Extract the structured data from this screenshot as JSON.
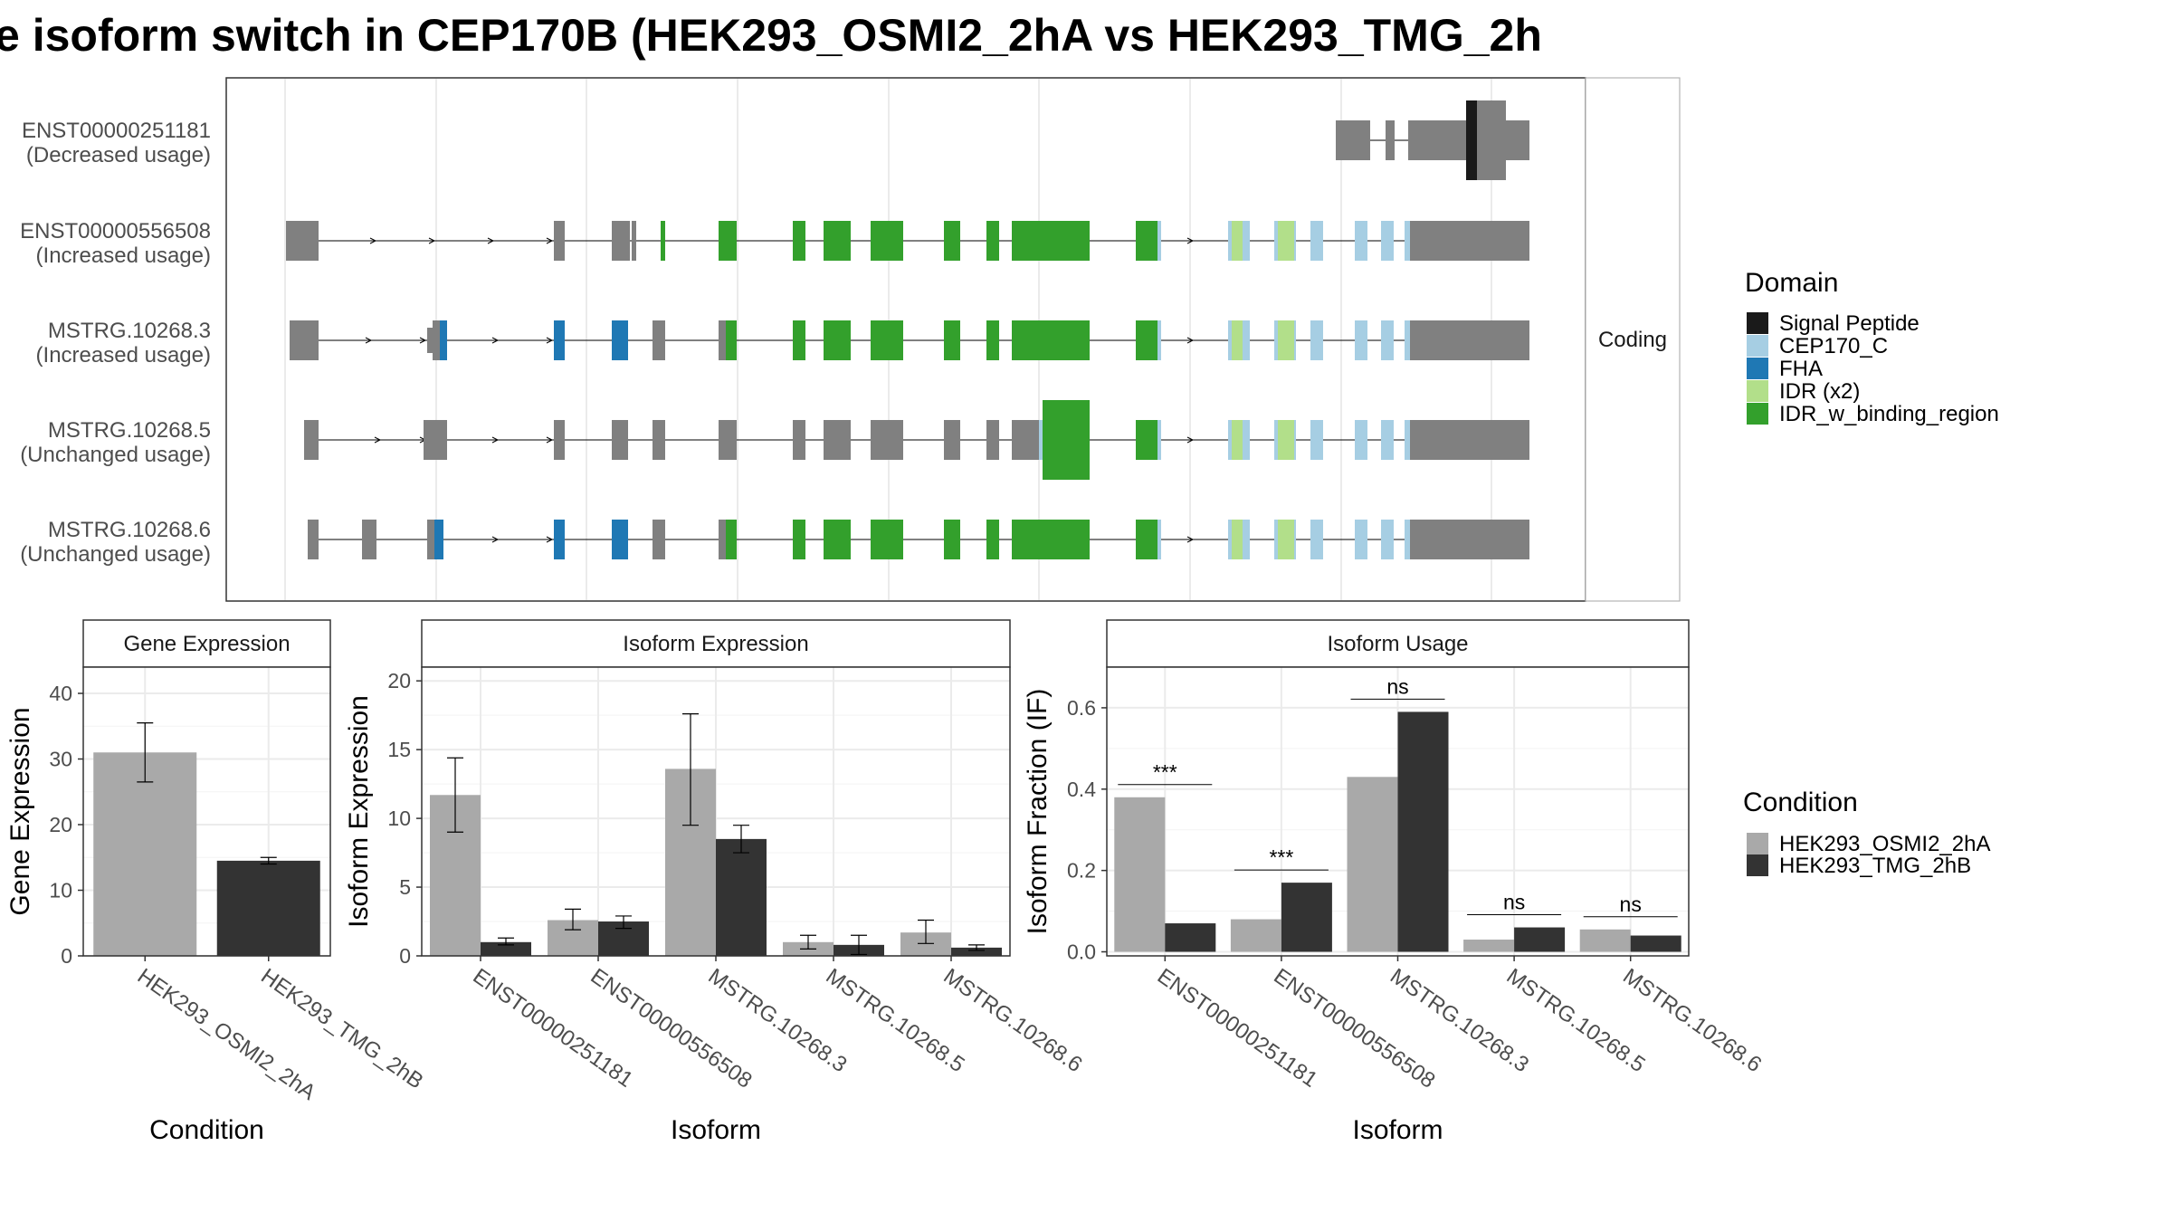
{
  "title": "e isoform switch in CEP170B (HEK293_OSMI2_2hA vs HEK293_TMG_2h",
  "colors": {
    "exon_noncoding": "#808080",
    "panel_border": "#333333",
    "strip_border": "#333333",
    "grid": "#ebebeb",
    "cond_a": "#a9a9a9",
    "cond_b": "#333333",
    "signal_peptide": "#1a1a1a",
    "cep170_c": "#a6cee3",
    "fha": "#1f78b4",
    "idr_x2": "#b2df8a",
    "idr_w_binding_region": "#33a02c"
  },
  "structure": {
    "facet_label": "Coding",
    "isoforms": [
      {
        "id": "ENST00000251181",
        "usage": "(Decreased usage)"
      },
      {
        "id": "ENST00000556508",
        "usage": "(Increased usage)"
      },
      {
        "id": "MSTRG.10268.3",
        "usage": "(Increased usage)"
      },
      {
        "id": "MSTRG.10268.5",
        "usage": "(Unchanged usage)"
      },
      {
        "id": "MSTRG.10268.6",
        "usage": "(Unchanged usage)"
      }
    ]
  },
  "domain_legend": {
    "title": "Domain",
    "items": [
      {
        "label": "Signal Peptide",
        "color": "#1a1a1a"
      },
      {
        "label": "CEP170_C",
        "color": "#a6cee3"
      },
      {
        "label": "FHA",
        "color": "#1f78b4"
      },
      {
        "label": "IDR (x2)",
        "color": "#b2df8a"
      },
      {
        "label": "IDR_w_binding_region",
        "color": "#33a02c"
      }
    ]
  },
  "condition_legend": {
    "title": "Condition",
    "items": [
      {
        "label": "HEK293_OSMI2_2hA",
        "color": "#a9a9a9"
      },
      {
        "label": "HEK293_TMG_2hB",
        "color": "#333333"
      }
    ]
  },
  "chart_data": [
    {
      "type": "bar",
      "title": "Gene Expression",
      "xlabel": "Condition",
      "ylabel": "Gene Expression",
      "categories": [
        "HEK293_OSMI2_2hA",
        "HEK293_TMG_2hB"
      ],
      "values": [
        31.0,
        14.5
      ],
      "errors": [
        [
          26.5,
          35.5
        ],
        [
          14.0,
          15.0
        ]
      ],
      "ylim": [
        0,
        44
      ],
      "yticks": [
        0,
        10,
        20,
        30,
        40
      ],
      "grid": true
    },
    {
      "type": "bar",
      "title": "Isoform Expression",
      "xlabel": "Isoform",
      "ylabel": "Isoform Expression",
      "categories": [
        "ENST00000251181",
        "ENST00000556508",
        "MSTRG.10268.3",
        "MSTRG.10268.5",
        "MSTRG.10268.6"
      ],
      "series": [
        {
          "name": "HEK293_OSMI2_2hA",
          "values": [
            11.7,
            2.6,
            13.6,
            1.0,
            1.7
          ],
          "errors": [
            [
              9.0,
              14.4
            ],
            [
              1.9,
              3.4
            ],
            [
              9.5,
              17.6
            ],
            [
              0.5,
              1.5
            ],
            [
              0.9,
              2.6
            ]
          ]
        },
        {
          "name": "HEK293_TMG_2hB",
          "values": [
            1.0,
            2.5,
            8.5,
            0.8,
            0.6
          ],
          "errors": [
            [
              0.8,
              1.3
            ],
            [
              2.0,
              2.9
            ],
            [
              7.5,
              9.5
            ],
            [
              0.1,
              1.5
            ],
            [
              0.4,
              0.8
            ]
          ]
        }
      ],
      "ylim": [
        0,
        21
      ],
      "yticks": [
        0,
        5,
        10,
        15,
        20
      ],
      "grid": true
    },
    {
      "type": "bar",
      "title": "Isoform Usage",
      "xlabel": "Isoform",
      "ylabel": "Isoform Fraction (IF)",
      "categories": [
        "ENST00000251181",
        "ENST00000556508",
        "MSTRG.10268.3",
        "MSTRG.10268.5",
        "MSTRG.10268.6"
      ],
      "series": [
        {
          "name": "HEK293_OSMI2_2hA",
          "values": [
            0.38,
            0.08,
            0.43,
            0.03,
            0.055
          ]
        },
        {
          "name": "HEK293_TMG_2hB",
          "values": [
            0.07,
            0.17,
            0.59,
            0.06,
            0.04
          ]
        }
      ],
      "significance": [
        "***",
        "***",
        "ns",
        "ns",
        "ns"
      ],
      "ylim": [
        -0.01,
        0.7
      ],
      "yticks": [
        0.0,
        0.2,
        0.4,
        0.6
      ],
      "ytick_labels": [
        "0.0",
        "0.2",
        "0.4",
        "0.6"
      ],
      "grid": true
    }
  ]
}
